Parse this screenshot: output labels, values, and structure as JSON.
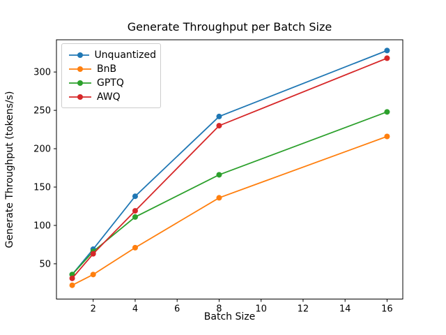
{
  "chart_data": {
    "type": "line",
    "title": "Generate Throughput per Batch Size",
    "xlabel": "Batch Size",
    "ylabel": "Generate Throughput (tokens/s)",
    "x": [
      1,
      2,
      4,
      8,
      16
    ],
    "series": [
      {
        "name": "Unquantized",
        "color": "#1f77b4",
        "values": [
          36,
          69,
          138,
          242,
          328
        ]
      },
      {
        "name": "BnB",
        "color": "#ff7f0e",
        "values": [
          22,
          36,
          71,
          136,
          216
        ]
      },
      {
        "name": "GPTQ",
        "color": "#2ca02c",
        "values": [
          36,
          66,
          111,
          166,
          248
        ]
      },
      {
        "name": "AWQ",
        "color": "#d62728",
        "values": [
          31,
          63,
          119,
          230,
          318
        ]
      }
    ],
    "xticks": [
      2,
      4,
      6,
      8,
      10,
      12,
      14,
      16
    ],
    "yticks": [
      50,
      100,
      150,
      200,
      250,
      300
    ],
    "xlim": [
      0.25,
      16.75
    ],
    "ylim": [
      4,
      342
    ],
    "grid": false,
    "legend_position": "upper left",
    "marker": "circle",
    "spine_color": "#000000",
    "background_color": "#ffffff"
  }
}
